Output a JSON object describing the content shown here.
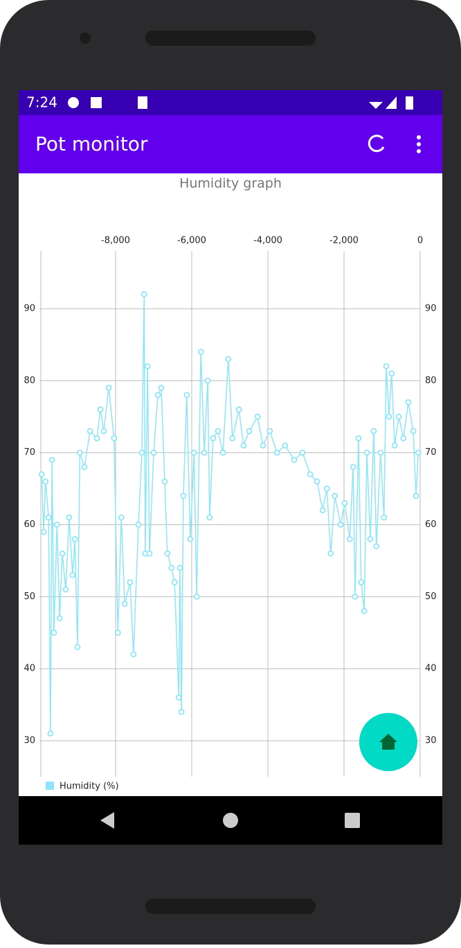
{
  "status_bar": {
    "time": "7:24"
  },
  "app_bar": {
    "title": "Pot monitor"
  },
  "chart_data": {
    "type": "line",
    "title": "Humidity graph",
    "xlim": [
      -10000,
      0
    ],
    "xticks": [
      {
        "value": -8000,
        "label": "-8,000"
      },
      {
        "value": -6000,
        "label": "-6,000"
      },
      {
        "value": -4000,
        "label": "-4,000"
      },
      {
        "value": -2000,
        "label": "-2,000"
      },
      0
    ],
    "ylim": [
      25,
      98
    ],
    "yticks": [
      30,
      40,
      50,
      60,
      70,
      80,
      90
    ],
    "grid": true,
    "series": [
      {
        "name": "Humidity (%)",
        "color": "#8ce6f7",
        "x": [
          -9940,
          -9890,
          -9840,
          -9760,
          -9710,
          -9670,
          -9620,
          -9540,
          -9470,
          -9400,
          -9310,
          -9220,
          -9130,
          -9070,
          -9000,
          -8940,
          -8820,
          -8670,
          -8490,
          -8400,
          -8310,
          -8180,
          -8040,
          -7940,
          -7850,
          -7760,
          -7620,
          -7530,
          -7400,
          -7310,
          -7250,
          -7220,
          -7160,
          -7110,
          -7000,
          -6890,
          -6800,
          -6710,
          -6640,
          -6530,
          -6450,
          -6340,
          -6310,
          -6270,
          -6220,
          -6130,
          -6040,
          -5940,
          -5870,
          -5760,
          -5670,
          -5580,
          -5530,
          -5440,
          -5310,
          -5180,
          -5040,
          -4930,
          -4760,
          -4640,
          -4490,
          -4270,
          -4130,
          -3950,
          -3760,
          -3550,
          -3310,
          -3090,
          -2890,
          -2710,
          -2560,
          -2450,
          -2350,
          -2240,
          -2090,
          -1980,
          -1850,
          -1760,
          -1710,
          -1620,
          -1550,
          -1470,
          -1400,
          -1310,
          -1220,
          -1150,
          -1040,
          -950,
          -890,
          -820,
          -750,
          -670,
          -560,
          -440,
          -310,
          -180,
          -110,
          -50
        ],
        "values": [
          67,
          59,
          66,
          61,
          31,
          69,
          45,
          60,
          47,
          56,
          51,
          61,
          53,
          58,
          43,
          70,
          68,
          73,
          72,
          76,
          73,
          79,
          72,
          45,
          61,
          49,
          52,
          42,
          60,
          70,
          92,
          56,
          82,
          56,
          70,
          78,
          79,
          66,
          56,
          54,
          52,
          36,
          54,
          34,
          64,
          78,
          58,
          70,
          50,
          84,
          70,
          80,
          61,
          72,
          73,
          70,
          83,
          72,
          76,
          71,
          73,
          75,
          71,
          73,
          70,
          71,
          69,
          70,
          67,
          66,
          62,
          65,
          56,
          64,
          60,
          63,
          58,
          68,
          50,
          72,
          52,
          48,
          70,
          58,
          73,
          57,
          70,
          61,
          82,
          75,
          81,
          71,
          75,
          72,
          77,
          73,
          64,
          70
        ]
      }
    ]
  }
}
